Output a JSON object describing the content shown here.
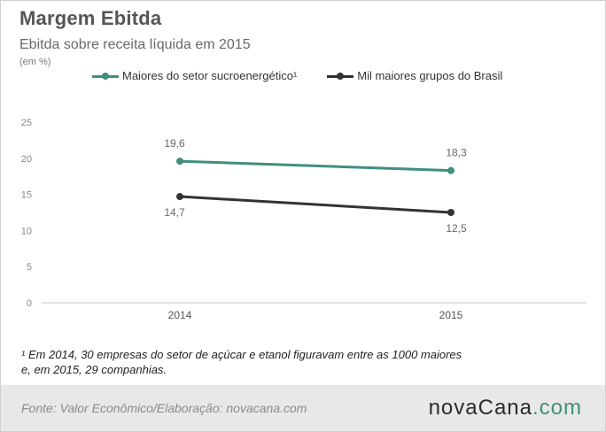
{
  "header": {
    "title": "Margem Ebitda",
    "subtitle": "Ebitda sobre receita líquida em 2015",
    "unit": "(em %)"
  },
  "chart_data": {
    "type": "line",
    "categories": [
      "2014",
      "2015"
    ],
    "series": [
      {
        "name": "Maiores do setor sucroenergético¹",
        "values": [
          19.6,
          18.3
        ],
        "labels": [
          "19,6",
          "18,3"
        ],
        "color": "#3f8f7c"
      },
      {
        "name": "Mil maiores grupos do Brasil",
        "values": [
          14.7,
          12.5
        ],
        "labels": [
          "14,7",
          "12,5"
        ],
        "color": "#333333"
      }
    ],
    "yticks": [
      "0",
      "5",
      "10",
      "15",
      "20",
      "25"
    ],
    "ylim": [
      0,
      25
    ],
    "grid": false,
    "legend_position": "top"
  },
  "footnote": {
    "line1": "¹ Em 2014, 30 empresas  do setor de açúcar e etanol figuravam entre as 1000 maiores",
    "line2": "e, em 2015, 29 companhias."
  },
  "footer": {
    "source": "Fonte:  Valor  Econômico/Elaboração: novacana.com",
    "logo_main": "novaCana",
    "logo_suffix": ".com"
  }
}
